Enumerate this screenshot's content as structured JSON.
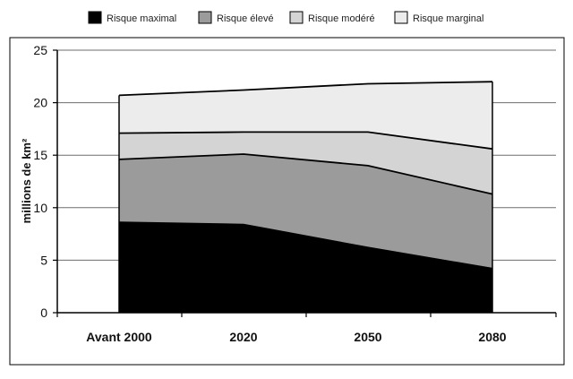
{
  "chart_data": {
    "type": "area",
    "stacked": true,
    "categories": [
      "Avant 2000",
      "2020",
      "2050",
      "2080"
    ],
    "series": [
      {
        "name": "Risque maximal",
        "values": [
          8.6,
          8.4,
          6.2,
          4.2
        ],
        "color": "#000000"
      },
      {
        "name": "Risque élevé",
        "values": [
          6.0,
          6.7,
          7.8,
          7.1
        ],
        "color": "#9b9b9b"
      },
      {
        "name": "Risque modéré",
        "values": [
          2.5,
          2.1,
          3.2,
          4.3
        ],
        "color": "#d4d4d4"
      },
      {
        "name": "Risque marginal",
        "values": [
          3.6,
          4.0,
          4.6,
          6.4
        ],
        "color": "#ececec"
      }
    ],
    "ylabel": "millions de km²",
    "ylim": [
      0,
      25
    ],
    "yticks": [
      "0",
      "5",
      "10",
      "15",
      "20",
      "25"
    ],
    "grid": true,
    "legend_position": "top"
  }
}
